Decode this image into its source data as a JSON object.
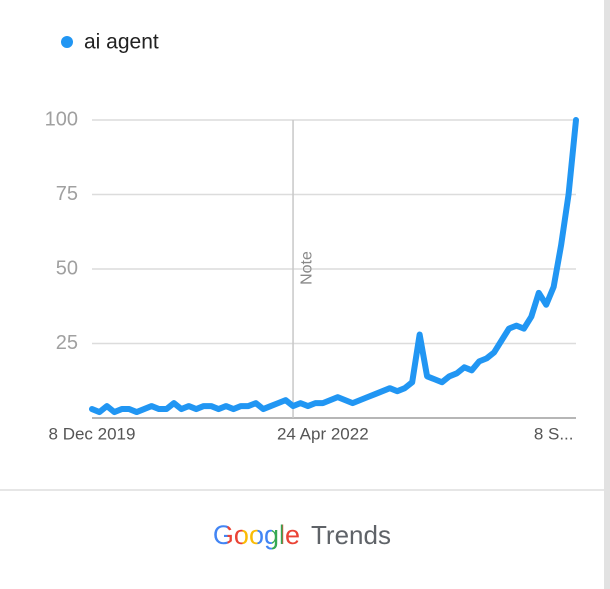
{
  "chart_data": {
    "type": "line",
    "categories": [
      "8 Dec 2019",
      null,
      null,
      null,
      null,
      null,
      null,
      null,
      null,
      null,
      null,
      null,
      null,
      null,
      null,
      null,
      null,
      null,
      null,
      null,
      null,
      null,
      null,
      null,
      null,
      null,
      null,
      null,
      null,
      null,
      null,
      "24 Apr 2022",
      null,
      null,
      null,
      null,
      null,
      null,
      null,
      null,
      null,
      null,
      null,
      null,
      null,
      null,
      null,
      null,
      null,
      null,
      null,
      null,
      null,
      null,
      null,
      null,
      null,
      null,
      null,
      null,
      null,
      null,
      "8 S...",
      null,
      null,
      null
    ],
    "series": [
      {
        "name": "ai agent",
        "color": "#2196f3",
        "values": [
          3,
          2,
          4,
          2,
          3,
          3,
          2,
          3,
          4,
          3,
          3,
          5,
          3,
          4,
          3,
          4,
          4,
          3,
          4,
          3,
          4,
          4,
          5,
          3,
          4,
          5,
          6,
          4,
          5,
          4,
          5,
          5,
          6,
          7,
          6,
          5,
          6,
          7,
          8,
          9,
          10,
          9,
          10,
          12,
          28,
          14,
          13,
          12,
          14,
          15,
          17,
          16,
          19,
          20,
          22,
          26,
          30,
          31,
          30,
          34,
          42,
          38,
          44,
          58,
          75,
          100
        ]
      }
    ],
    "ylim": [
      0,
      100
    ],
    "yticks": [
      25,
      50,
      75,
      100
    ],
    "grid": true,
    "annotations": [
      {
        "text": "Note",
        "category_index": 27
      }
    ]
  },
  "footer": {
    "brand": "Google",
    "product": "Trends"
  }
}
